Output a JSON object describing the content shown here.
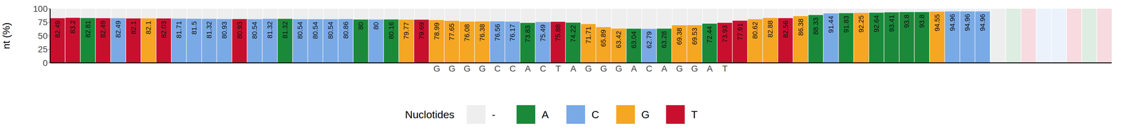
{
  "chart_data": {
    "type": "bar",
    "y_label": "nt (%)",
    "legend_title": "Nuclotides",
    "legend": "bottom",
    "data_labels": true,
    "grid": false,
    "ylim": [
      0,
      100
    ],
    "yticks": [
      0,
      25,
      50,
      75,
      100
    ],
    "legend_items": [
      {
        "name": "-",
        "color": "#eeeeee"
      },
      {
        "name": "A",
        "color": "#1a8a3a"
      },
      {
        "name": "C",
        "color": "#7aaae6"
      },
      {
        "name": "G",
        "color": "#f5a623"
      },
      {
        "name": "T",
        "color": "#c8102e"
      }
    ],
    "categories": [
      null,
      null,
      null,
      null,
      null,
      null,
      null,
      null,
      null,
      null,
      null,
      null,
      null,
      null,
      null,
      null,
      null,
      null,
      null,
      null,
      null,
      null,
      null,
      null,
      null,
      "G",
      "G",
      "G",
      "G",
      "C",
      "C",
      "A",
      "C",
      "T",
      "A",
      "G",
      "G",
      "G",
      "A",
      "C",
      "A",
      "G",
      "G",
      "A",
      "T",
      null,
      null,
      null,
      null,
      null,
      null,
      null,
      null,
      null,
      null,
      null,
      null,
      null,
      null,
      null,
      null,
      null,
      null,
      null,
      null,
      null,
      null,
      null,
      null,
      null
    ],
    "nucleotides": [
      "T",
      "T",
      "A",
      "T",
      "C",
      "T",
      "G",
      "T",
      "C",
      "C",
      "C",
      "C",
      "T",
      "C",
      "C",
      "A",
      "C",
      "C",
      "C",
      "C",
      "A",
      "C",
      "A",
      "G",
      "T",
      "G",
      "G",
      "G",
      "G",
      "C",
      "C",
      "A",
      "C",
      "T",
      "A",
      "G",
      "G",
      "G",
      "A",
      "C",
      "A",
      "G",
      "G",
      "A",
      "T",
      "T",
      "G",
      "G",
      "T",
      "G",
      "A",
      "C",
      "A",
      "G",
      "A",
      "A",
      "A",
      "A",
      "G",
      "C",
      "C",
      "C",
      "-",
      "A",
      "T",
      "C",
      "C",
      "T",
      "A",
      "T"
    ],
    "values": [
      82.49,
      83.2,
      82.81,
      82.49,
      82.49,
      82.1,
      82.1,
      82.03,
      81.71,
      81.5,
      81.32,
      80.93,
      80.93,
      80.54,
      81.32,
      81.32,
      80.54,
      80.54,
      80.54,
      80.86,
      80,
      80,
      80.16,
      79.77,
      79.69,
      78.99,
      77.65,
      76.08,
      76.38,
      76.56,
      76.17,
      73.83,
      75.49,
      75.88,
      74.22,
      71.71,
      65.89,
      63.42,
      63.04,
      62.79,
      63.28,
      69.38,
      69.53,
      72.44,
      73.93,
      77.91,
      80.62,
      82.88,
      82.56,
      86.38,
      88.33,
      91.44,
      91.83,
      92.25,
      92.64,
      93.41,
      93.8,
      93.8,
      94.55,
      94.96,
      94.96,
      94.96,
      null,
      null,
      null,
      null,
      null,
      null,
      null,
      null
    ]
  }
}
